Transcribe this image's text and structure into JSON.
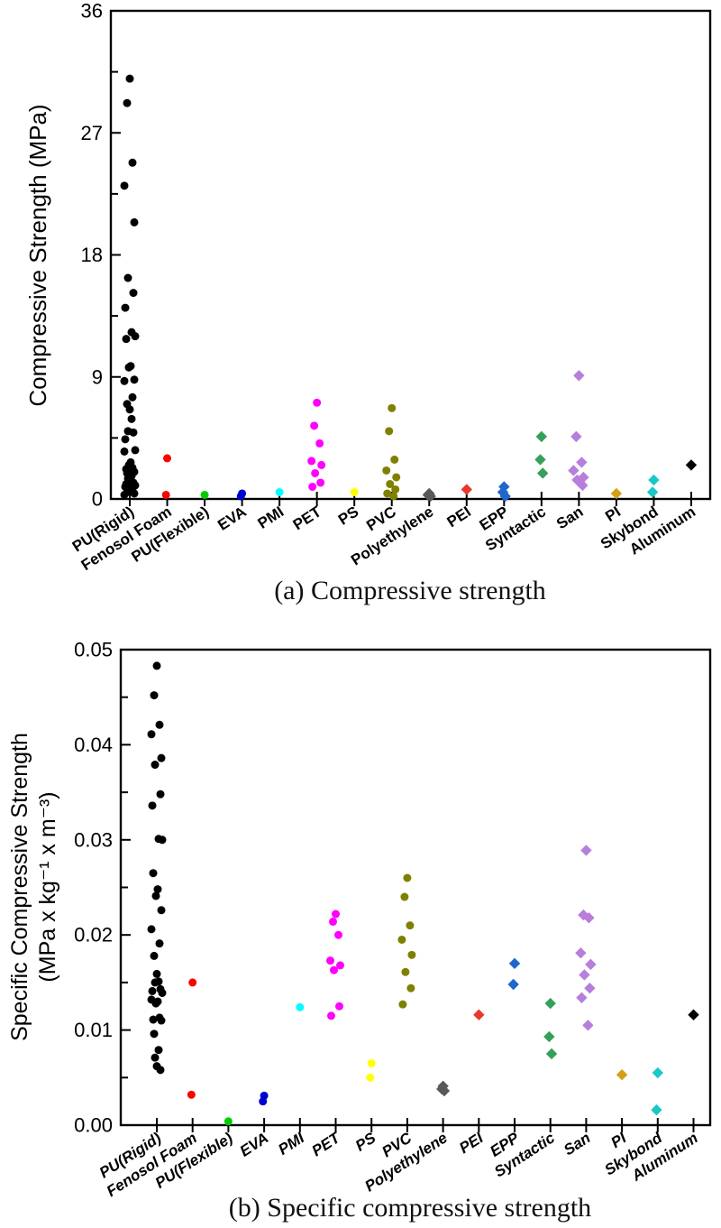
{
  "figure": {
    "background": "#ffffff"
  },
  "chart_data": [
    {
      "id": "a",
      "type": "scatter",
      "caption": "(a) Compressive strength",
      "ylabel": "Compressive Strength (MPa)",
      "xlabel": "",
      "ylim": [
        0,
        36
      ],
      "yticks": [
        0,
        9,
        18,
        27,
        36
      ],
      "ytick_labels": [
        "0",
        "9",
        "18",
        "27",
        "36"
      ],
      "yminor": [
        4.5,
        13.5,
        22.5,
        31.5
      ],
      "grid": false,
      "legend": "none",
      "categories": [
        "PU(Rigid)",
        "Fenosol Foam",
        "PU(Flexible)",
        "EVA",
        "PMI",
        "PET",
        "PS",
        "PVC",
        "Polyethylene",
        "PEI",
        "EPP",
        "Syntactic",
        "San",
        "PI",
        "Skybond",
        "Aluminum"
      ],
      "series": [
        {
          "name": "PU(Rigid)",
          "color": "#000000",
          "marker": "circle",
          "values": [
            31.0,
            29.2,
            24.8,
            23.1,
            20.4,
            16.3,
            15.2,
            14.1,
            12.3,
            12.0,
            11.8,
            9.8,
            9.7,
            8.8,
            8.7,
            7.5,
            7.0,
            6.6,
            5.9,
            5.0,
            4.9,
            4.4,
            3.6,
            3.5,
            2.7,
            2.5,
            2.3,
            2.2,
            2.0,
            1.9,
            1.7,
            1.5,
            1.4,
            1.2,
            1.1,
            1.0,
            0.9,
            0.8,
            0.7,
            0.6,
            0.5,
            0.4,
            0.3
          ]
        },
        {
          "name": "Fenosol Foam",
          "color": "#ff0000",
          "marker": "circle",
          "values": [
            3.0,
            0.3
          ]
        },
        {
          "name": "PU(Flexible)",
          "color": "#00cc00",
          "marker": "circle",
          "values": [
            0.3
          ]
        },
        {
          "name": "EVA",
          "color": "#0000cd",
          "marker": "circle",
          "values": [
            0.4,
            0.2
          ]
        },
        {
          "name": "PMI",
          "color": "#00ffff",
          "marker": "circle",
          "values": [
            0.5
          ]
        },
        {
          "name": "PET",
          "color": "#ff00ff",
          "marker": "circle",
          "values": [
            7.1,
            5.4,
            4.1,
            2.8,
            2.5,
            1.9,
            1.2,
            0.9
          ]
        },
        {
          "name": "PS",
          "color": "#ffff00",
          "marker": "circle",
          "values": [
            0.5
          ]
        },
        {
          "name": "PVC",
          "color": "#808000",
          "marker": "circle",
          "values": [
            6.7,
            5.0,
            2.9,
            2.1,
            1.6,
            1.1,
            0.7,
            0.4,
            0.2
          ]
        },
        {
          "name": "Polyethylene",
          "color": "#595959",
          "marker": "diamond",
          "values": [
            0.4,
            0.3,
            0.2
          ]
        },
        {
          "name": "PEI",
          "color": "#e8392e",
          "marker": "diamond",
          "values": [
            0.7
          ]
        },
        {
          "name": "EPP",
          "color": "#2166cc",
          "marker": "diamond",
          "values": [
            0.9,
            0.5,
            0.2
          ]
        },
        {
          "name": "Syntactic",
          "color": "#35a05a",
          "marker": "diamond",
          "values": [
            4.6,
            2.9,
            1.9
          ]
        },
        {
          "name": "San",
          "color": "#b77edc",
          "marker": "diamond",
          "values": [
            9.1,
            4.6,
            2.7,
            2.1,
            1.6,
            1.4,
            1.0
          ]
        },
        {
          "name": "PI",
          "color": "#d4a017",
          "marker": "diamond",
          "values": [
            0.4
          ]
        },
        {
          "name": "Skybond",
          "color": "#18c8c8",
          "marker": "diamond",
          "values": [
            1.4,
            0.5
          ]
        },
        {
          "name": "Aluminum",
          "color": "#000000",
          "marker": "diamond",
          "values": [
            2.5
          ]
        }
      ]
    },
    {
      "id": "b",
      "type": "scatter",
      "caption": "(b) Specific compressive strength",
      "ylabel_line1": "Specific Compressive Strength",
      "ylabel_line2": "(MPa x kg⁻¹ x m⁻³)",
      "xlabel": "",
      "ylim": [
        0,
        0.05
      ],
      "yticks": [
        0,
        0.01,
        0.02,
        0.03,
        0.04,
        0.05
      ],
      "ytick_labels": [
        "0.00",
        "0.01",
        "0.02",
        "0.03",
        "0.04",
        "0.05"
      ],
      "yminor": [
        0.005,
        0.015,
        0.025,
        0.035,
        0.045
      ],
      "grid": false,
      "legend": "none",
      "categories": [
        "PU(Rigid)",
        "Fenosol Foam",
        "PU(Flexible)",
        "EVA",
        "PMI",
        "PET",
        "PS",
        "PVC",
        "Polyethylene",
        "PEI",
        "EPP",
        "Syntactic",
        "San",
        "PI",
        "Skybond",
        "Aluminum"
      ],
      "series": [
        {
          "name": "PU(Rigid)",
          "color": "#000000",
          "marker": "circle",
          "values": [
            0.0483,
            0.0452,
            0.0421,
            0.0411,
            0.0386,
            0.0379,
            0.0348,
            0.0336,
            0.0301,
            0.03,
            0.0265,
            0.0248,
            0.0241,
            0.0226,
            0.0206,
            0.0191,
            0.0178,
            0.0159,
            0.0151,
            0.015,
            0.0143,
            0.0141,
            0.0139,
            0.0132,
            0.013,
            0.0128,
            0.0113,
            0.0111,
            0.011,
            0.0096,
            0.0079,
            0.0071,
            0.0062,
            0.0058
          ]
        },
        {
          "name": "Fenosol Foam",
          "color": "#ff0000",
          "marker": "circle",
          "values": [
            0.015,
            0.0032
          ]
        },
        {
          "name": "PU(Flexible)",
          "color": "#00cc00",
          "marker": "circle",
          "values": [
            0.0004
          ]
        },
        {
          "name": "EVA",
          "color": "#0000cd",
          "marker": "circle",
          "values": [
            0.0031,
            0.0025
          ]
        },
        {
          "name": "PMI",
          "color": "#00ffff",
          "marker": "circle",
          "values": [
            0.0124
          ]
        },
        {
          "name": "PET",
          "color": "#ff00ff",
          "marker": "circle",
          "values": [
            0.0222,
            0.0214,
            0.02,
            0.0173,
            0.0168,
            0.0163,
            0.0125,
            0.0115
          ]
        },
        {
          "name": "PS",
          "color": "#ffff00",
          "marker": "circle",
          "values": [
            0.0065,
            0.005
          ]
        },
        {
          "name": "PVC",
          "color": "#808000",
          "marker": "circle",
          "values": [
            0.026,
            0.024,
            0.021,
            0.0195,
            0.0179,
            0.0161,
            0.0144,
            0.0127
          ]
        },
        {
          "name": "Polyethylene",
          "color": "#595959",
          "marker": "diamond",
          "values": [
            0.0041,
            0.0038,
            0.0036
          ]
        },
        {
          "name": "PEI",
          "color": "#e8392e",
          "marker": "diamond",
          "values": [
            0.0116
          ]
        },
        {
          "name": "EPP",
          "color": "#2166cc",
          "marker": "diamond",
          "values": [
            0.017,
            0.0148
          ]
        },
        {
          "name": "Syntactic",
          "color": "#35a05a",
          "marker": "diamond",
          "values": [
            0.0128,
            0.0093,
            0.0075
          ]
        },
        {
          "name": "San",
          "color": "#b77edc",
          "marker": "diamond",
          "values": [
            0.0289,
            0.0221,
            0.0218,
            0.0181,
            0.0169,
            0.0158,
            0.0144,
            0.0134,
            0.0105
          ]
        },
        {
          "name": "PI",
          "color": "#d4a017",
          "marker": "diamond",
          "values": [
            0.0053
          ]
        },
        {
          "name": "Skybond",
          "color": "#18c8c8",
          "marker": "diamond",
          "values": [
            0.0055,
            0.0016
          ]
        },
        {
          "name": "Aluminum",
          "color": "#000000",
          "marker": "diamond",
          "values": [
            0.0116
          ]
        }
      ]
    }
  ]
}
